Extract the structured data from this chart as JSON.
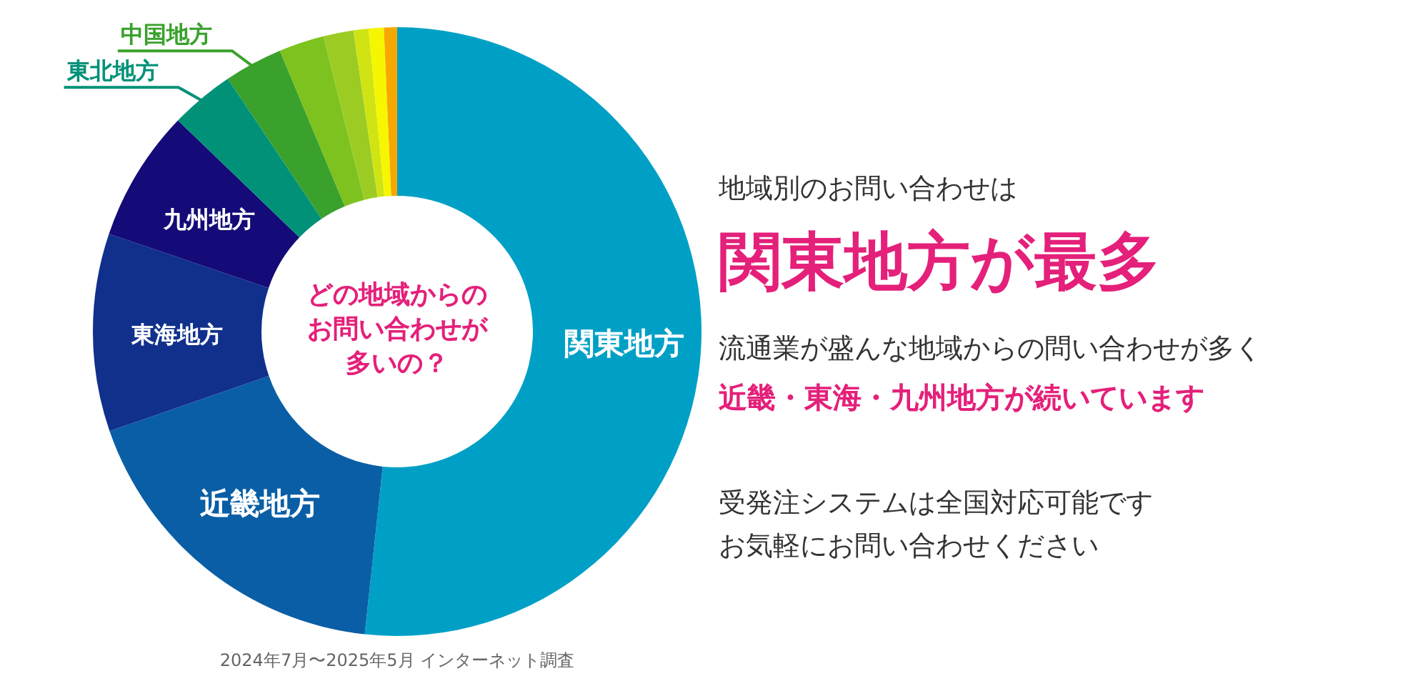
{
  "chart_data": {
    "type": "donut",
    "title": "関東地方が最多",
    "subtitle": "地域別のお問い合わせは",
    "categories": [
      "関東地方",
      "近畿地方",
      "東海地方",
      "九州地方",
      "東北地方",
      "中国地方",
      null,
      null,
      null,
      null,
      null
    ],
    "values": [
      51.7,
      18.0,
      10.5,
      7.0,
      3.4,
      3.1,
      2.4,
      1.6,
      0.8,
      0.8,
      0.7
    ],
    "colors": [
      "#00a0c6",
      "#0a5ea6",
      "#10308c",
      "#140a78",
      "#009178",
      "#3aa12c",
      "#7dc21e",
      "#9ccc24",
      "#d0e414",
      "#f6f600",
      "#f7a800"
    ],
    "annotations": [
      "どの地域からの",
      "お問い合わせが",
      "多いの？",
      "流通業が盛んな地域からの問い合わせが多く",
      "近畿・東海・九州地方が続いています",
      "受発注システムは全国対応可能です",
      "お気軽にお問い合わせください",
      "2024年7月〜2025年5月 インターネット調査"
    ],
    "legend": false
  }
}
